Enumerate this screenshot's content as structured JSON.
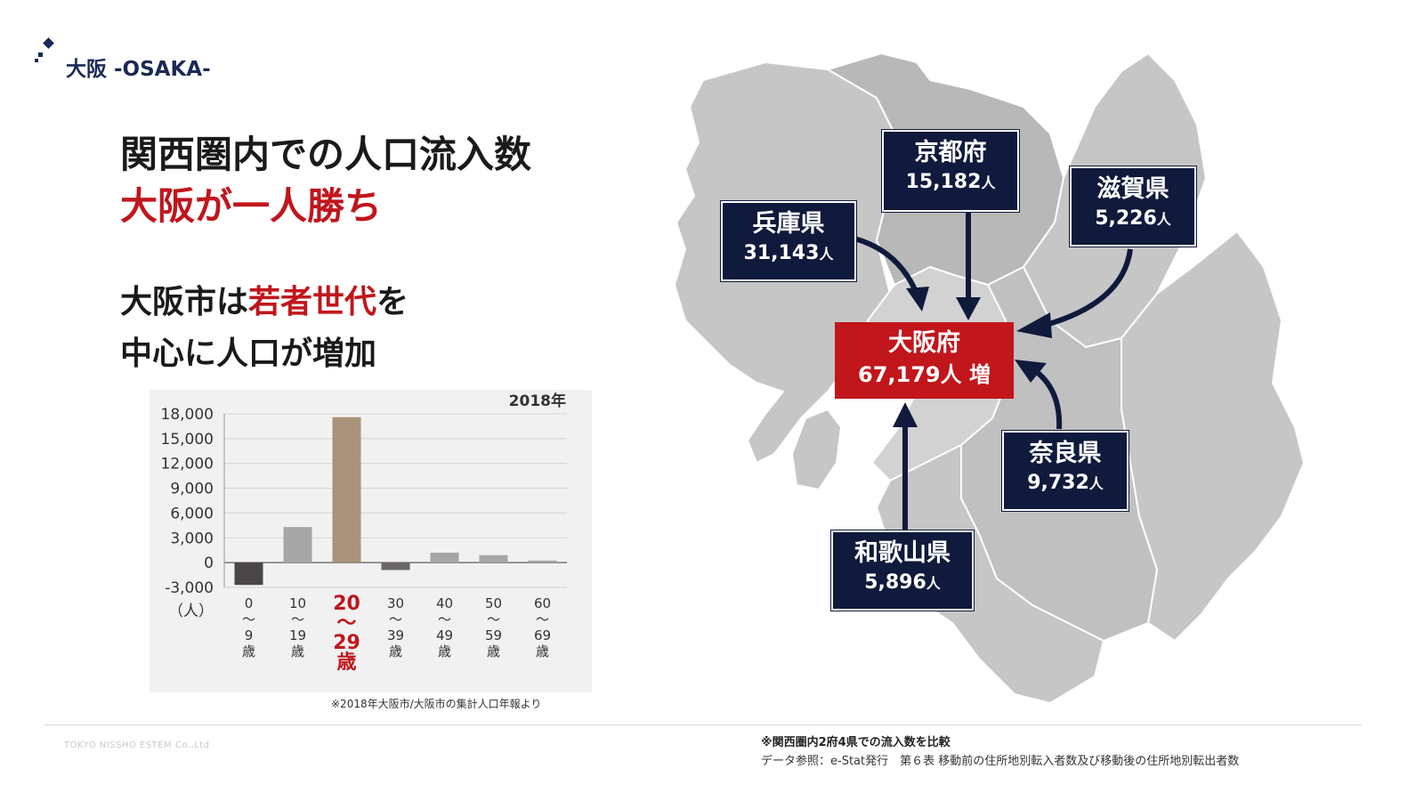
{
  "brand": {
    "title": "大阪 -OSAKA-"
  },
  "headline": {
    "line1": "関西圏内での人口流入数",
    "line2": "大阪が一人勝ち"
  },
  "subhead": {
    "part1": "大阪市は",
    "highlight": "若者世代",
    "part2": "を",
    "line2": "中心に人口が増加"
  },
  "colors": {
    "accent_red": "#c0161c",
    "navy": "#0f1a3c",
    "map_gray": "#c6c6c6"
  },
  "regions": {
    "kyoto": {
      "name": "京都府",
      "value": "15,182",
      "unit": "人"
    },
    "hyogo": {
      "name": "兵庫県",
      "value": "31,143",
      "unit": "人"
    },
    "shiga": {
      "name": "滋賀県",
      "value": "5,226",
      "unit": "人"
    },
    "osaka": {
      "name": "大阪府",
      "value": "67,179人 増"
    },
    "nara": {
      "name": "奈良県",
      "value": "9,732",
      "unit": "人"
    },
    "wakayama": {
      "name": "和歌山県",
      "value": "5,896",
      "unit": "人"
    }
  },
  "chart_data": {
    "type": "bar",
    "year_label": "2018年",
    "unit_label": "（人）",
    "categories": [
      [
        "0",
        "〜",
        "9",
        "歳"
      ],
      [
        "10",
        "〜",
        "19",
        "歳"
      ],
      [
        "20",
        "〜",
        "29",
        "歳"
      ],
      [
        "30",
        "〜",
        "39",
        "歳"
      ],
      [
        "40",
        "〜",
        "49",
        "歳"
      ],
      [
        "50",
        "〜",
        "59",
        "歳"
      ],
      [
        "60",
        "〜",
        "69",
        "歳"
      ]
    ],
    "values": [
      -2700,
      4300,
      17600,
      -900,
      1200,
      900,
      250
    ],
    "highlight_index": 2,
    "ylim": [
      -3000,
      18000
    ],
    "yticks": [
      18000,
      15000,
      12000,
      9000,
      6000,
      3000,
      0,
      -3000
    ],
    "ytick_labels": [
      "18,000",
      "15,000",
      "12,000",
      "9,000",
      "6,000",
      "3,000",
      "0",
      "-3,000"
    ],
    "bar_colors": [
      "#4a4546",
      "#a6a6a6",
      "#a8927a",
      "#6b6666",
      "#a6a6a6",
      "#a6a6a6",
      "#a6a6a6"
    ],
    "grid": true,
    "note": "※2018年大阪市/大阪市の集計人口年報より"
  },
  "footer": {
    "company": "TOKYO NISSHO ESTEM Co.,Ltd",
    "note1": "※関西圏内2府4県での流入数を比較",
    "note2": "データ参照：e-Stat発行　第６表 移動前の住所地別転入者数及び移動後の住所地別転出者数"
  }
}
